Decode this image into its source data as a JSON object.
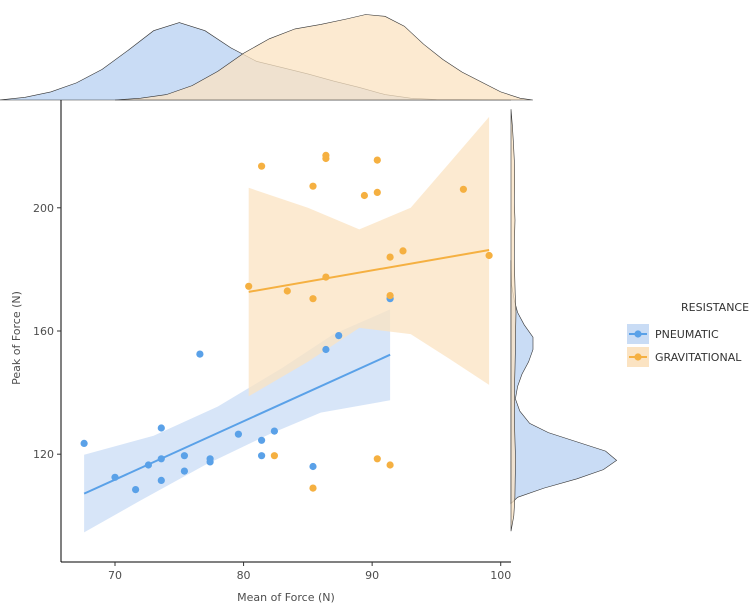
{
  "chart_data": {
    "type": "scatter",
    "xlabel": "Mean of Force (N)",
    "ylabel": "Peak of Force (N)",
    "xlim": [
      65.8,
      100.8
    ],
    "ylim": [
      85,
      235
    ],
    "xticks": [
      70,
      80,
      90,
      100
    ],
    "yticks": [
      120,
      160,
      200
    ],
    "legend": {
      "title": "RESISTANCE",
      "position": "right"
    },
    "series": [
      {
        "name": "PNEUMATIC",
        "color": "#5aa1e8",
        "fill": "#c9dcf5",
        "points": [
          {
            "x": 67.6,
            "y": 123.5
          },
          {
            "x": 70.0,
            "y": 112.5
          },
          {
            "x": 71.6,
            "y": 108.5
          },
          {
            "x": 72.6,
            "y": 116.5
          },
          {
            "x": 73.6,
            "y": 118.5
          },
          {
            "x": 73.6,
            "y": 111.5
          },
          {
            "x": 73.6,
            "y": 128.5
          },
          {
            "x": 75.4,
            "y": 119.5
          },
          {
            "x": 75.4,
            "y": 114.5
          },
          {
            "x": 76.6,
            "y": 152.5
          },
          {
            "x": 77.4,
            "y": 118.5
          },
          {
            "x": 77.4,
            "y": 117.5
          },
          {
            "x": 79.6,
            "y": 126.5
          },
          {
            "x": 81.4,
            "y": 124.5
          },
          {
            "x": 81.4,
            "y": 119.5
          },
          {
            "x": 82.4,
            "y": 127.5
          },
          {
            "x": 85.4,
            "y": 116.0
          },
          {
            "x": 86.4,
            "y": 154.0
          },
          {
            "x": 87.4,
            "y": 158.5
          },
          {
            "x": 91.4,
            "y": 170.5
          }
        ],
        "fit": {
          "x": [
            67.6,
            91.4
          ],
          "y": [
            107.2,
            152.3
          ]
        },
        "ci_lower": [
          [
            67.6,
            94.6
          ],
          [
            72.0,
            105.0
          ],
          [
            77.0,
            116.5
          ],
          [
            82.0,
            126.5
          ],
          [
            86.0,
            133.5
          ],
          [
            91.4,
            137.5
          ]
        ],
        "ci_upper": [
          [
            91.4,
            167.0
          ],
          [
            87.0,
            159.0
          ],
          [
            83.0,
            148.0
          ],
          [
            78.0,
            135.5
          ],
          [
            73.0,
            126.0
          ],
          [
            67.6,
            119.8
          ]
        ],
        "density_x": [
          [
            61.0,
            0.0
          ],
          [
            63.0,
            0.03
          ],
          [
            65.0,
            0.09
          ],
          [
            67.0,
            0.19
          ],
          [
            69.0,
            0.34
          ],
          [
            71.0,
            0.55
          ],
          [
            73.0,
            0.77
          ],
          [
            75.0,
            0.86
          ],
          [
            77.0,
            0.77
          ],
          [
            79.0,
            0.58
          ],
          [
            81.0,
            0.43
          ],
          [
            83.0,
            0.36
          ],
          [
            85.0,
            0.29
          ],
          [
            87.0,
            0.21
          ],
          [
            89.0,
            0.14
          ],
          [
            91.0,
            0.06
          ],
          [
            93.0,
            0.02
          ],
          [
            95.0,
            0.005
          ],
          [
            100.8,
            0.0
          ]
        ],
        "density_y": [
          [
            104.0,
            0.0
          ],
          [
            106.0,
            0.06
          ],
          [
            109.0,
            0.3
          ],
          [
            112.0,
            0.6
          ],
          [
            115.0,
            0.84
          ],
          [
            118.0,
            0.96
          ],
          [
            121.0,
            0.86
          ],
          [
            124.0,
            0.6
          ],
          [
            127.0,
            0.34
          ],
          [
            130.0,
            0.17
          ],
          [
            134.0,
            0.08
          ],
          [
            138.0,
            0.04
          ],
          [
            142.0,
            0.06
          ],
          [
            146.0,
            0.1
          ],
          [
            150.0,
            0.16
          ],
          [
            154.0,
            0.2
          ],
          [
            158.0,
            0.2
          ],
          [
            162.0,
            0.12
          ],
          [
            166.0,
            0.06
          ],
          [
            170.0,
            0.03
          ],
          [
            175.0,
            0.005
          ],
          [
            183.0,
            0.0
          ]
        ]
      },
      {
        "name": "GRAVITATIONAL",
        "color": "#f5b041",
        "fill": "#fbe3c2",
        "points": [
          {
            "x": 80.4,
            "y": 174.5
          },
          {
            "x": 81.4,
            "y": 213.5
          },
          {
            "x": 82.4,
            "y": 119.5
          },
          {
            "x": 83.4,
            "y": 173.0
          },
          {
            "x": 85.4,
            "y": 207.0
          },
          {
            "x": 85.4,
            "y": 170.5
          },
          {
            "x": 85.4,
            "y": 109.0
          },
          {
            "x": 86.4,
            "y": 217.0
          },
          {
            "x": 86.4,
            "y": 216.0
          },
          {
            "x": 86.4,
            "y": 177.5
          },
          {
            "x": 89.4,
            "y": 204.0
          },
          {
            "x": 90.4,
            "y": 215.5
          },
          {
            "x": 90.4,
            "y": 205.0
          },
          {
            "x": 90.4,
            "y": 118.5
          },
          {
            "x": 91.4,
            "y": 171.5
          },
          {
            "x": 91.4,
            "y": 116.5
          },
          {
            "x": 91.4,
            "y": 184.0
          },
          {
            "x": 92.4,
            "y": 186.0
          },
          {
            "x": 97.1,
            "y": 206.0
          },
          {
            "x": 99.1,
            "y": 184.5
          }
        ],
        "fit": {
          "x": [
            80.4,
            99.1
          ],
          "y": [
            172.7,
            186.3
          ]
        },
        "ci_lower": [
          [
            80.4,
            138.8
          ],
          [
            85.0,
            150.0
          ],
          [
            89.0,
            161.0
          ],
          [
            93.0,
            159.0
          ],
          [
            96.0,
            151.0
          ],
          [
            99.1,
            142.5
          ]
        ],
        "ci_upper": [
          [
            99.1,
            229.5
          ],
          [
            96.0,
            214.5
          ],
          [
            93.0,
            200.0
          ],
          [
            89.0,
            193.0
          ],
          [
            85.0,
            200.0
          ],
          [
            80.4,
            206.5
          ]
        ],
        "density_x": [
          [
            70.0,
            0.0
          ],
          [
            72.0,
            0.02
          ],
          [
            74.0,
            0.06
          ],
          [
            76.0,
            0.16
          ],
          [
            78.0,
            0.32
          ],
          [
            80.0,
            0.52
          ],
          [
            82.0,
            0.68
          ],
          [
            84.0,
            0.79
          ],
          [
            86.0,
            0.84
          ],
          [
            88.0,
            0.9
          ],
          [
            89.5,
            0.95
          ],
          [
            91.0,
            0.93
          ],
          [
            92.5,
            0.82
          ],
          [
            94.0,
            0.62
          ],
          [
            95.5,
            0.45
          ],
          [
            97.0,
            0.31
          ],
          [
            98.5,
            0.2
          ],
          [
            100.0,
            0.09
          ],
          [
            101.5,
            0.02
          ],
          [
            102.5,
            0.0
          ]
        ],
        "density_y": [
          [
            95.0,
            0.0
          ],
          [
            100.0,
            0.025
          ],
          [
            106.0,
            0.035
          ],
          [
            112.0,
            0.038
          ],
          [
            118.0,
            0.042
          ],
          [
            124.0,
            0.036
          ],
          [
            130.0,
            0.032
          ],
          [
            136.0,
            0.034
          ],
          [
            142.0,
            0.032
          ],
          [
            148.0,
            0.036
          ],
          [
            154.0,
            0.04
          ],
          [
            160.0,
            0.042
          ],
          [
            166.0,
            0.045
          ],
          [
            172.0,
            0.038
          ],
          [
            178.0,
            0.034
          ],
          [
            184.0,
            0.03
          ],
          [
            190.0,
            0.032
          ],
          [
            196.0,
            0.036
          ],
          [
            202.0,
            0.03
          ],
          [
            208.0,
            0.034
          ],
          [
            214.0,
            0.032
          ],
          [
            220.0,
            0.024
          ],
          [
            226.0,
            0.014
          ],
          [
            232.0,
            0.0
          ]
        ]
      }
    ]
  }
}
